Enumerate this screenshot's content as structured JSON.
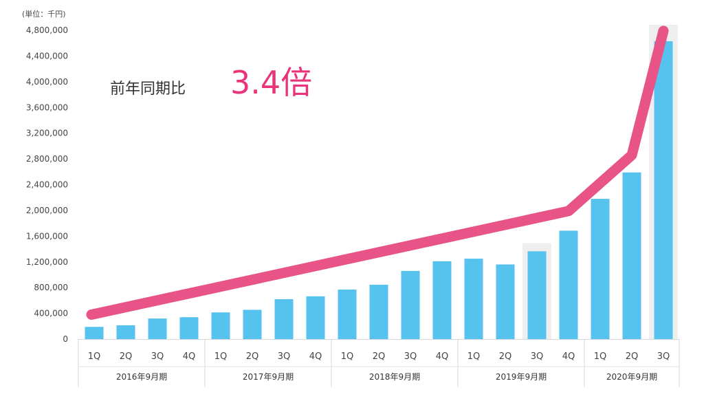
{
  "unit_label": "(単位：千円)",
  "annotation": {
    "label": "前年同期比",
    "value": "3.4倍"
  },
  "colors": {
    "bar": "#56c3ef",
    "line": "#e85488",
    "highlight": "#efefef",
    "accent_text": "#e8357a"
  },
  "chart_data": {
    "type": "bar",
    "ylim": [
      0,
      4800000
    ],
    "yticks": [
      0,
      400000,
      800000,
      1200000,
      1600000,
      2000000,
      2400000,
      2800000,
      3200000,
      3600000,
      4000000,
      4400000,
      4800000
    ],
    "ytick_labels": [
      "0",
      "400,000",
      "800,000",
      "1,200,000",
      "1,600,000",
      "2,000,000",
      "2,400,000",
      "2,800,000",
      "3,200,000",
      "3,600,000",
      "4,000,000",
      "4,400,000",
      "4,800,000"
    ],
    "categories": [
      "1Q",
      "2Q",
      "3Q",
      "4Q",
      "1Q",
      "2Q",
      "3Q",
      "4Q",
      "1Q",
      "2Q",
      "3Q",
      "4Q",
      "1Q",
      "2Q",
      "3Q",
      "4Q",
      "1Q",
      "2Q",
      "3Q"
    ],
    "groups": [
      {
        "label": "2016年9月期",
        "count": 4
      },
      {
        "label": "2017年9月期",
        "count": 4
      },
      {
        "label": "2018年9月期",
        "count": 4
      },
      {
        "label": "2019年9月期",
        "count": 4
      },
      {
        "label": "2020年9月期",
        "count": 3
      }
    ],
    "values": [
      190000,
      215000,
      320000,
      340000,
      415000,
      455000,
      620000,
      665000,
      770000,
      845000,
      1060000,
      1210000,
      1250000,
      1160000,
      1365000,
      1685000,
      2180000,
      2590000,
      4630000
    ],
    "highlighted_indices": [
      14,
      18
    ],
    "trend_line": [
      {
        "x_index": 0,
        "y": 380000
      },
      {
        "x_index": 15,
        "y": 1990000
      },
      {
        "x_index": 17,
        "y": 2860000
      },
      {
        "x_index": 18,
        "y": 4790000
      }
    ],
    "grid": false
  }
}
